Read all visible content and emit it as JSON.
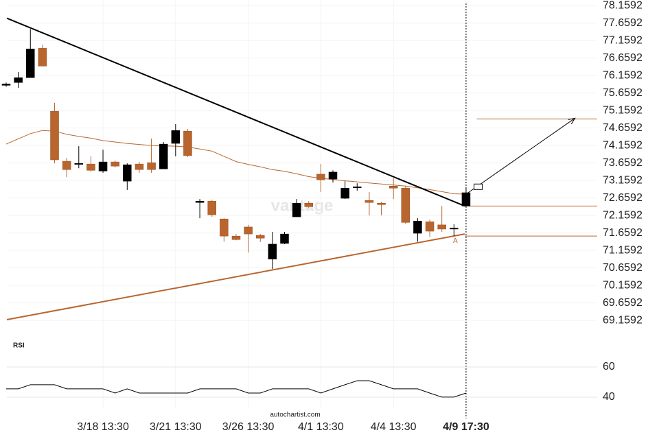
{
  "chart_data": {
    "type": "candlestick",
    "categories": [
      null,
      null,
      null,
      null,
      null,
      null,
      null,
      null,
      "3/18 13:30",
      null,
      null,
      null,
      null,
      null,
      "3/21 13:30",
      null,
      null,
      null,
      null,
      null,
      "3/26 13:30",
      null,
      null,
      null,
      null,
      null,
      "4/1 13:30",
      null,
      null,
      null,
      null,
      null,
      "4/4 13:30",
      null,
      null,
      null,
      null,
      null,
      "4/9 17:30"
    ],
    "open": [
      75.88,
      75.96,
      76.1,
      76.94,
      75.14,
      73.71,
      73.64,
      73.63,
      73.43,
      73.69,
      73.14,
      73.63,
      73.67,
      73.49,
      74.22,
      74.57,
      72.53,
      72.57,
      72.06,
      71.57,
      71.83,
      71.59,
      70.91,
      71.36,
      72.12,
      72.51,
      73.34,
      73.2,
      72.65,
      72.97,
      72.59,
      72.51,
      73.0,
      72.94,
      71.65,
      71.98,
      71.89,
      71.8,
      72.43
    ],
    "high": [
      75.96,
      76.26,
      77.49,
      77.04,
      75.38,
      73.81,
      74.14,
      73.85,
      74.04,
      73.73,
      73.65,
      73.69,
      74.36,
      74.26,
      74.77,
      74.63,
      72.63,
      72.61,
      72.08,
      71.63,
      71.89,
      71.63,
      71.69,
      71.69,
      72.63,
      72.57,
      73.63,
      73.45,
      73.14,
      73.08,
      72.83,
      72.55,
      73.26,
      73.0,
      72.08,
      72.04,
      72.43,
      71.91,
      72.96
    ],
    "low": [
      75.84,
      75.81,
      76.1,
      76.43,
      73.65,
      73.26,
      73.51,
      73.41,
      73.38,
      73.53,
      72.89,
      73.38,
      73.38,
      73.49,
      73.85,
      73.83,
      72.08,
      72.12,
      71.41,
      71.45,
      71.1,
      71.4,
      70.63,
      71.34,
      72.12,
      72.36,
      72.83,
      73.1,
      72.63,
      72.87,
      72.16,
      72.16,
      72.63,
      71.92,
      71.41,
      71.55,
      71.69,
      71.57,
      72.41
    ],
    "close": [
      75.92,
      76.1,
      76.92,
      76.43,
      73.75,
      73.47,
      73.65,
      73.45,
      73.69,
      73.57,
      73.61,
      73.47,
      73.47,
      74.2,
      74.59,
      73.87,
      72.57,
      72.18,
      71.57,
      71.47,
      71.63,
      71.51,
      71.34,
      71.63,
      72.51,
      72.41,
      73.18,
      73.4,
      72.94,
      72.98,
      72.53,
      72.47,
      72.94,
      71.96,
      72.0,
      71.71,
      71.77,
      71.8,
      72.81
    ],
    "up_color": "#000000",
    "down_color": "#b8652e",
    "moving_average": {
      "color": "#b8652e",
      "values": [
        74.2,
        74.35,
        74.5,
        74.59,
        74.57,
        74.48,
        74.42,
        74.37,
        74.3,
        74.26,
        74.22,
        74.19,
        74.16,
        74.15,
        74.14,
        74.12,
        74.06,
        74.0,
        73.85,
        73.7,
        73.62,
        73.55,
        73.47,
        73.42,
        73.35,
        73.27,
        73.22,
        73.19,
        73.15,
        73.12,
        73.09,
        73.06,
        73.03,
        73.0,
        72.95,
        72.9,
        72.84,
        72.78,
        72.77
      ]
    },
    "trendlines": [
      {
        "color": "#000000",
        "from": [
          0,
          77.8
        ],
        "to": [
          38,
          72.43
        ]
      },
      {
        "color": "#b8652e",
        "from": [
          0,
          69.18
        ],
        "to": [
          38,
          71.63
        ]
      }
    ],
    "levels": [
      {
        "color": "#b8652e",
        "from": 38,
        "value": 72.43
      },
      {
        "color": "#b8652e",
        "from": 38,
        "value": 71.57
      },
      {
        "color": "#b8652e",
        "from": 39,
        "value": 74.92
      }
    ],
    "forecast_arrow": {
      "from": [
        38,
        72.77
      ],
      "to": [
        47,
        74.94
      ]
    },
    "forecast_box": [
      39,
      72.98
    ],
    "marker": {
      "index": 37,
      "value": 71.63,
      "label": "A"
    },
    "vertical_line": 38,
    "ylim": [
      68.71,
      78.32
    ],
    "yticks": [
      78.1592,
      77.6592,
      77.1592,
      76.6592,
      76.1592,
      75.6592,
      75.1592,
      74.6592,
      74.1592,
      73.6592,
      73.1592,
      72.6592,
      72.1592,
      71.6592,
      71.1592,
      70.6592,
      70.1592,
      69.6592,
      69.1592
    ],
    "grid": true,
    "rsi": {
      "label": "RSI",
      "ylim": [
        32.7,
        75.9
      ],
      "yticks": [
        60,
        40
      ],
      "color": "#000000",
      "values": [
        45.5,
        45.5,
        48.2,
        48.2,
        48.2,
        45.5,
        45.5,
        45.5,
        45.5,
        42.7,
        45.5,
        42.7,
        42.7,
        42.7,
        42.7,
        42.7,
        45.5,
        45.5,
        45.5,
        45.5,
        42.7,
        42.7,
        45.5,
        45.5,
        45.5,
        45.5,
        42.7,
        45.5,
        48.2,
        50.9,
        50.9,
        48.2,
        45.5,
        45.5,
        45.5,
        42.7,
        40,
        40,
        42.7
      ]
    },
    "watermark": "vantage",
    "source": "autochartist.com"
  }
}
